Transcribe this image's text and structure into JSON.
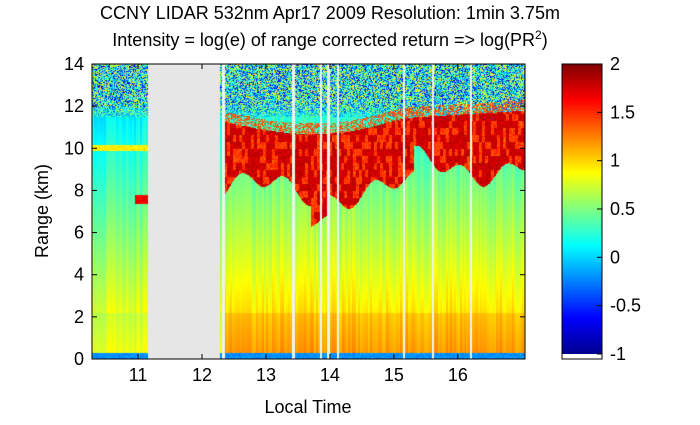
{
  "chart_data": {
    "type": "heatmap",
    "title_line1": "CCNY LIDAR 532nm Apr17 2009 Resolution: 1min 3.75m",
    "title_line2_prefix": "Intensity = log(e) of range corrected return => log(PR",
    "title_line2_sup": "2",
    "title_line2_suffix": ")",
    "xlabel": "Local Time",
    "ylabel": "Range (km)",
    "x_ticks": [
      "11",
      "12",
      "13",
      "14",
      "15",
      "16"
    ],
    "x_tick_values": [
      11,
      12,
      13,
      14,
      15,
      16
    ],
    "y_ticks": [
      "0",
      "2",
      "4",
      "6",
      "8",
      "10",
      "12",
      "14"
    ],
    "y_tick_values": [
      0,
      2,
      4,
      6,
      8,
      10,
      12,
      14
    ],
    "xlim": [
      10.28,
      17.05
    ],
    "ylim": [
      0,
      14
    ],
    "colorbar": {
      "ticks": [
        "2",
        "1.5",
        "1",
        "0.5",
        "0",
        "-0.5",
        "-1"
      ],
      "tick_values": [
        2,
        1.5,
        1,
        0.5,
        0,
        -0.5,
        -1
      ],
      "range": [
        -1,
        2
      ],
      "colormap": "jet"
    },
    "missing_data_interval": {
      "start": 11.15,
      "end": 12.27,
      "color": "#e6e6e6"
    },
    "data_gaps_lines": [
      12.33,
      13.42,
      13.85,
      13.97,
      14.12,
      15.15,
      15.6,
      16.2
    ],
    "structure": {
      "surface_layer": {
        "top_km": 0.3,
        "value": -0.3
      },
      "boundary_layer": {
        "top_km": 2.2,
        "value": 1.2
      },
      "cirrus_cloud": {
        "base_km": 8.0,
        "top_km": 11.3,
        "value": 1.9,
        "start": 12.33,
        "end": 17.05
      },
      "early_cloud": {
        "base_km": 7.4,
        "top_km": 7.8,
        "start": 10.95,
        "end": 11.15,
        "value": 1.5
      },
      "noise_region_km": 11.5
    }
  }
}
